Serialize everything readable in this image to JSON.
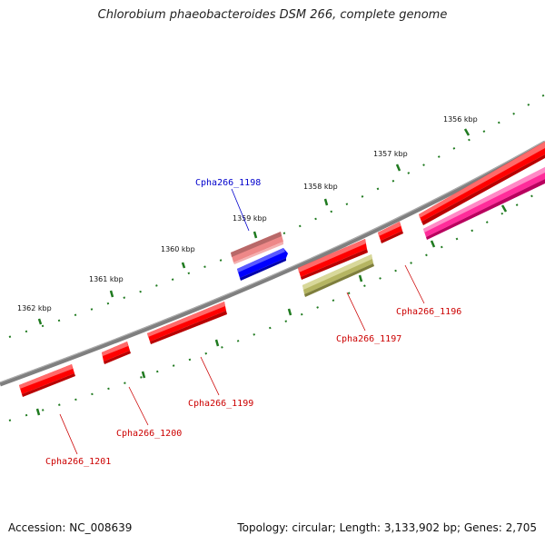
{
  "title": "Chlorobium phaeobacteroides DSM 266, complete genome",
  "footer": {
    "accession": "Accession: NC_008639",
    "summary": "Topology: circular; Length: 3,133,902 bp; Genes: 2,705"
  },
  "colors": {
    "backbone": "#7f7f7f",
    "tick": "#1f7a1f",
    "red_gene": "#ff0000",
    "selected_gene": "#0000ff",
    "pale_red_gene": "#ee8888",
    "olive_gene": "#b5b562",
    "magenta_gene": "#ff2c9a",
    "selected_label": "#0000cc",
    "label": "#cc0000"
  },
  "scale_labels": [
    "1356 kbp",
    "1357 kbp",
    "1358 kbp",
    "1359 kbp",
    "1360 kbp",
    "1361 kbp",
    "1362 kbp"
  ],
  "genes": [
    {
      "name": "Cpha266_1196",
      "color": "red_gene"
    },
    {
      "name": "Cpha266_1197",
      "color": "olive_gene"
    },
    {
      "name": "Cpha266_1198",
      "color": "selected_gene"
    },
    {
      "name": "Cpha266_1199",
      "color": "red_gene"
    },
    {
      "name": "Cpha266_1200",
      "color": "red_gene"
    },
    {
      "name": "Cpha266_1201",
      "color": "red_gene"
    }
  ]
}
